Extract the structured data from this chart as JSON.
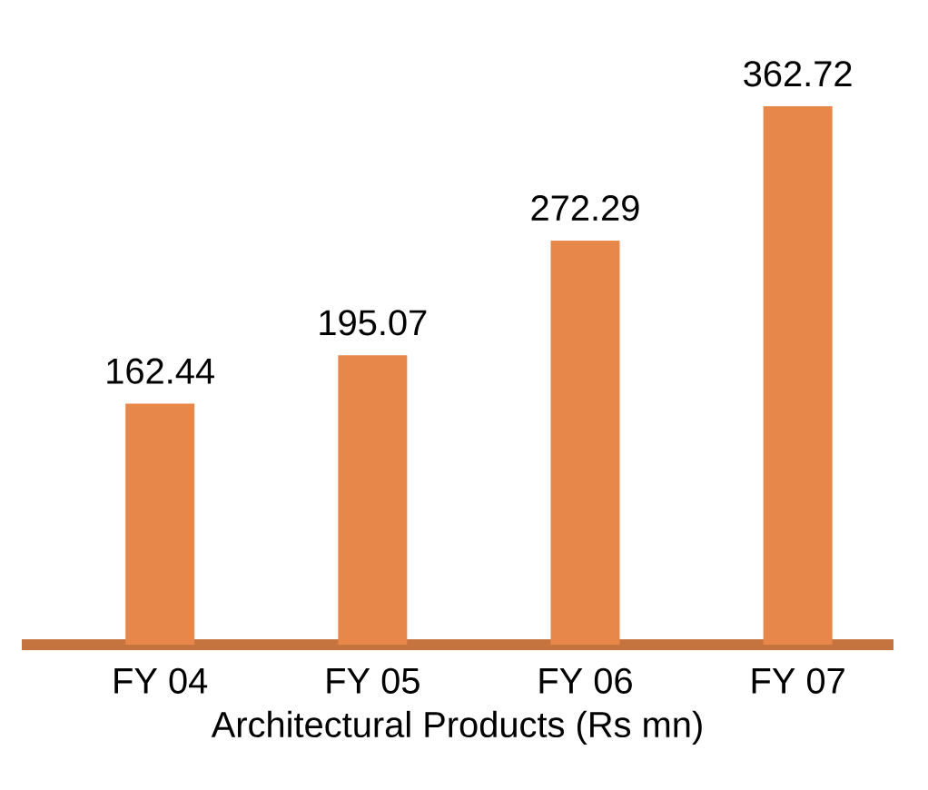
{
  "chart_data": {
    "type": "bar",
    "xlabel": "Architectural Products (Rs mn)",
    "categories": [
      "FY 04",
      "FY 05",
      "FY 06",
      "FY 07"
    ],
    "values": [
      162.44,
      195.07,
      272.29,
      362.72
    ],
    "value_labels": [
      "162.44",
      "195.07",
      "272.29",
      "362.72"
    ],
    "color": "#e8874a"
  }
}
